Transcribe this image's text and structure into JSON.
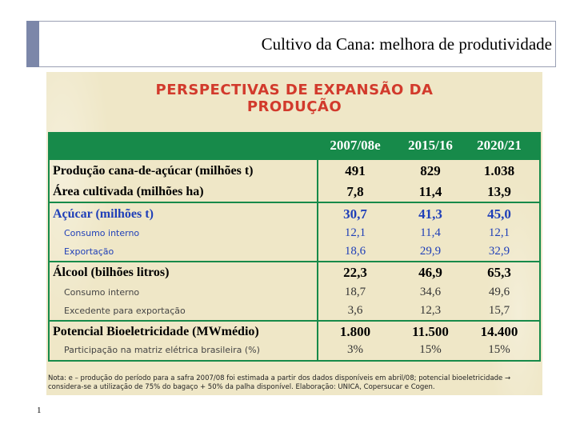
{
  "header": {
    "title": "Cultivo da Cana: melhora de produtividade"
  },
  "slide": {
    "heading_line1": "PERSPECTIVAS DE EXPANSÃO DA",
    "heading_line2": "PRODUÇÃO",
    "columns": [
      "2007/08e",
      "2015/16",
      "2020/21"
    ],
    "rows": [
      {
        "label": "Produção cana-de-açúcar (milhões t)",
        "values": [
          "491",
          "829",
          "1.038"
        ],
        "style": "main"
      },
      {
        "label": "Área cultivada (milhões ha)",
        "values": [
          "7,8",
          "11,4",
          "13,9"
        ],
        "style": "main"
      },
      {
        "label": "Açúcar (milhões t)",
        "values": [
          "30,7",
          "41,3",
          "45,0"
        ],
        "style": "blue"
      },
      {
        "label": "Consumo interno",
        "values": [
          "12,1",
          "11,4",
          "12,1"
        ],
        "style": "blue-sub"
      },
      {
        "label": "Exportação",
        "values": [
          "18,6",
          "29,9",
          "32,9"
        ],
        "style": "blue-sub"
      },
      {
        "label": "Álcool (bilhões litros)",
        "values": [
          "22,3",
          "46,9",
          "65,3"
        ],
        "style": "main"
      },
      {
        "label": "Consumo interno",
        "values": [
          "18,7",
          "34,6",
          "49,6"
        ],
        "style": "sub"
      },
      {
        "label": "Excedente para exportação",
        "values": [
          "3,6",
          "12,3",
          "15,7"
        ],
        "style": "sub"
      },
      {
        "label": "Potencial Bioeletricidade (MWmédio)",
        "values": [
          "1.800",
          "11.500",
          "14.400"
        ],
        "style": "main"
      },
      {
        "label": "Participação na matriz elétrica brasileira (%)",
        "values": [
          "3%",
          "15%",
          "15%"
        ],
        "style": "sub"
      }
    ],
    "note_line1": "Nota: e – produção do período para a safra 2007/08 foi estimada a partir dos dados disponíveis em abril/08; potencial bioeletricidade →",
    "note_line2": "considera-se a utilização de 75% do bagaço + 50% da palha disponível. Elaboração: UNICA, Copersucar e Cogen."
  },
  "footer": {
    "page_number": "1"
  },
  "colors": {
    "accent": "#7c87a9",
    "table_green": "#178a4a",
    "heading_red": "#d23a2c",
    "blue_text": "#1f3fb8"
  }
}
